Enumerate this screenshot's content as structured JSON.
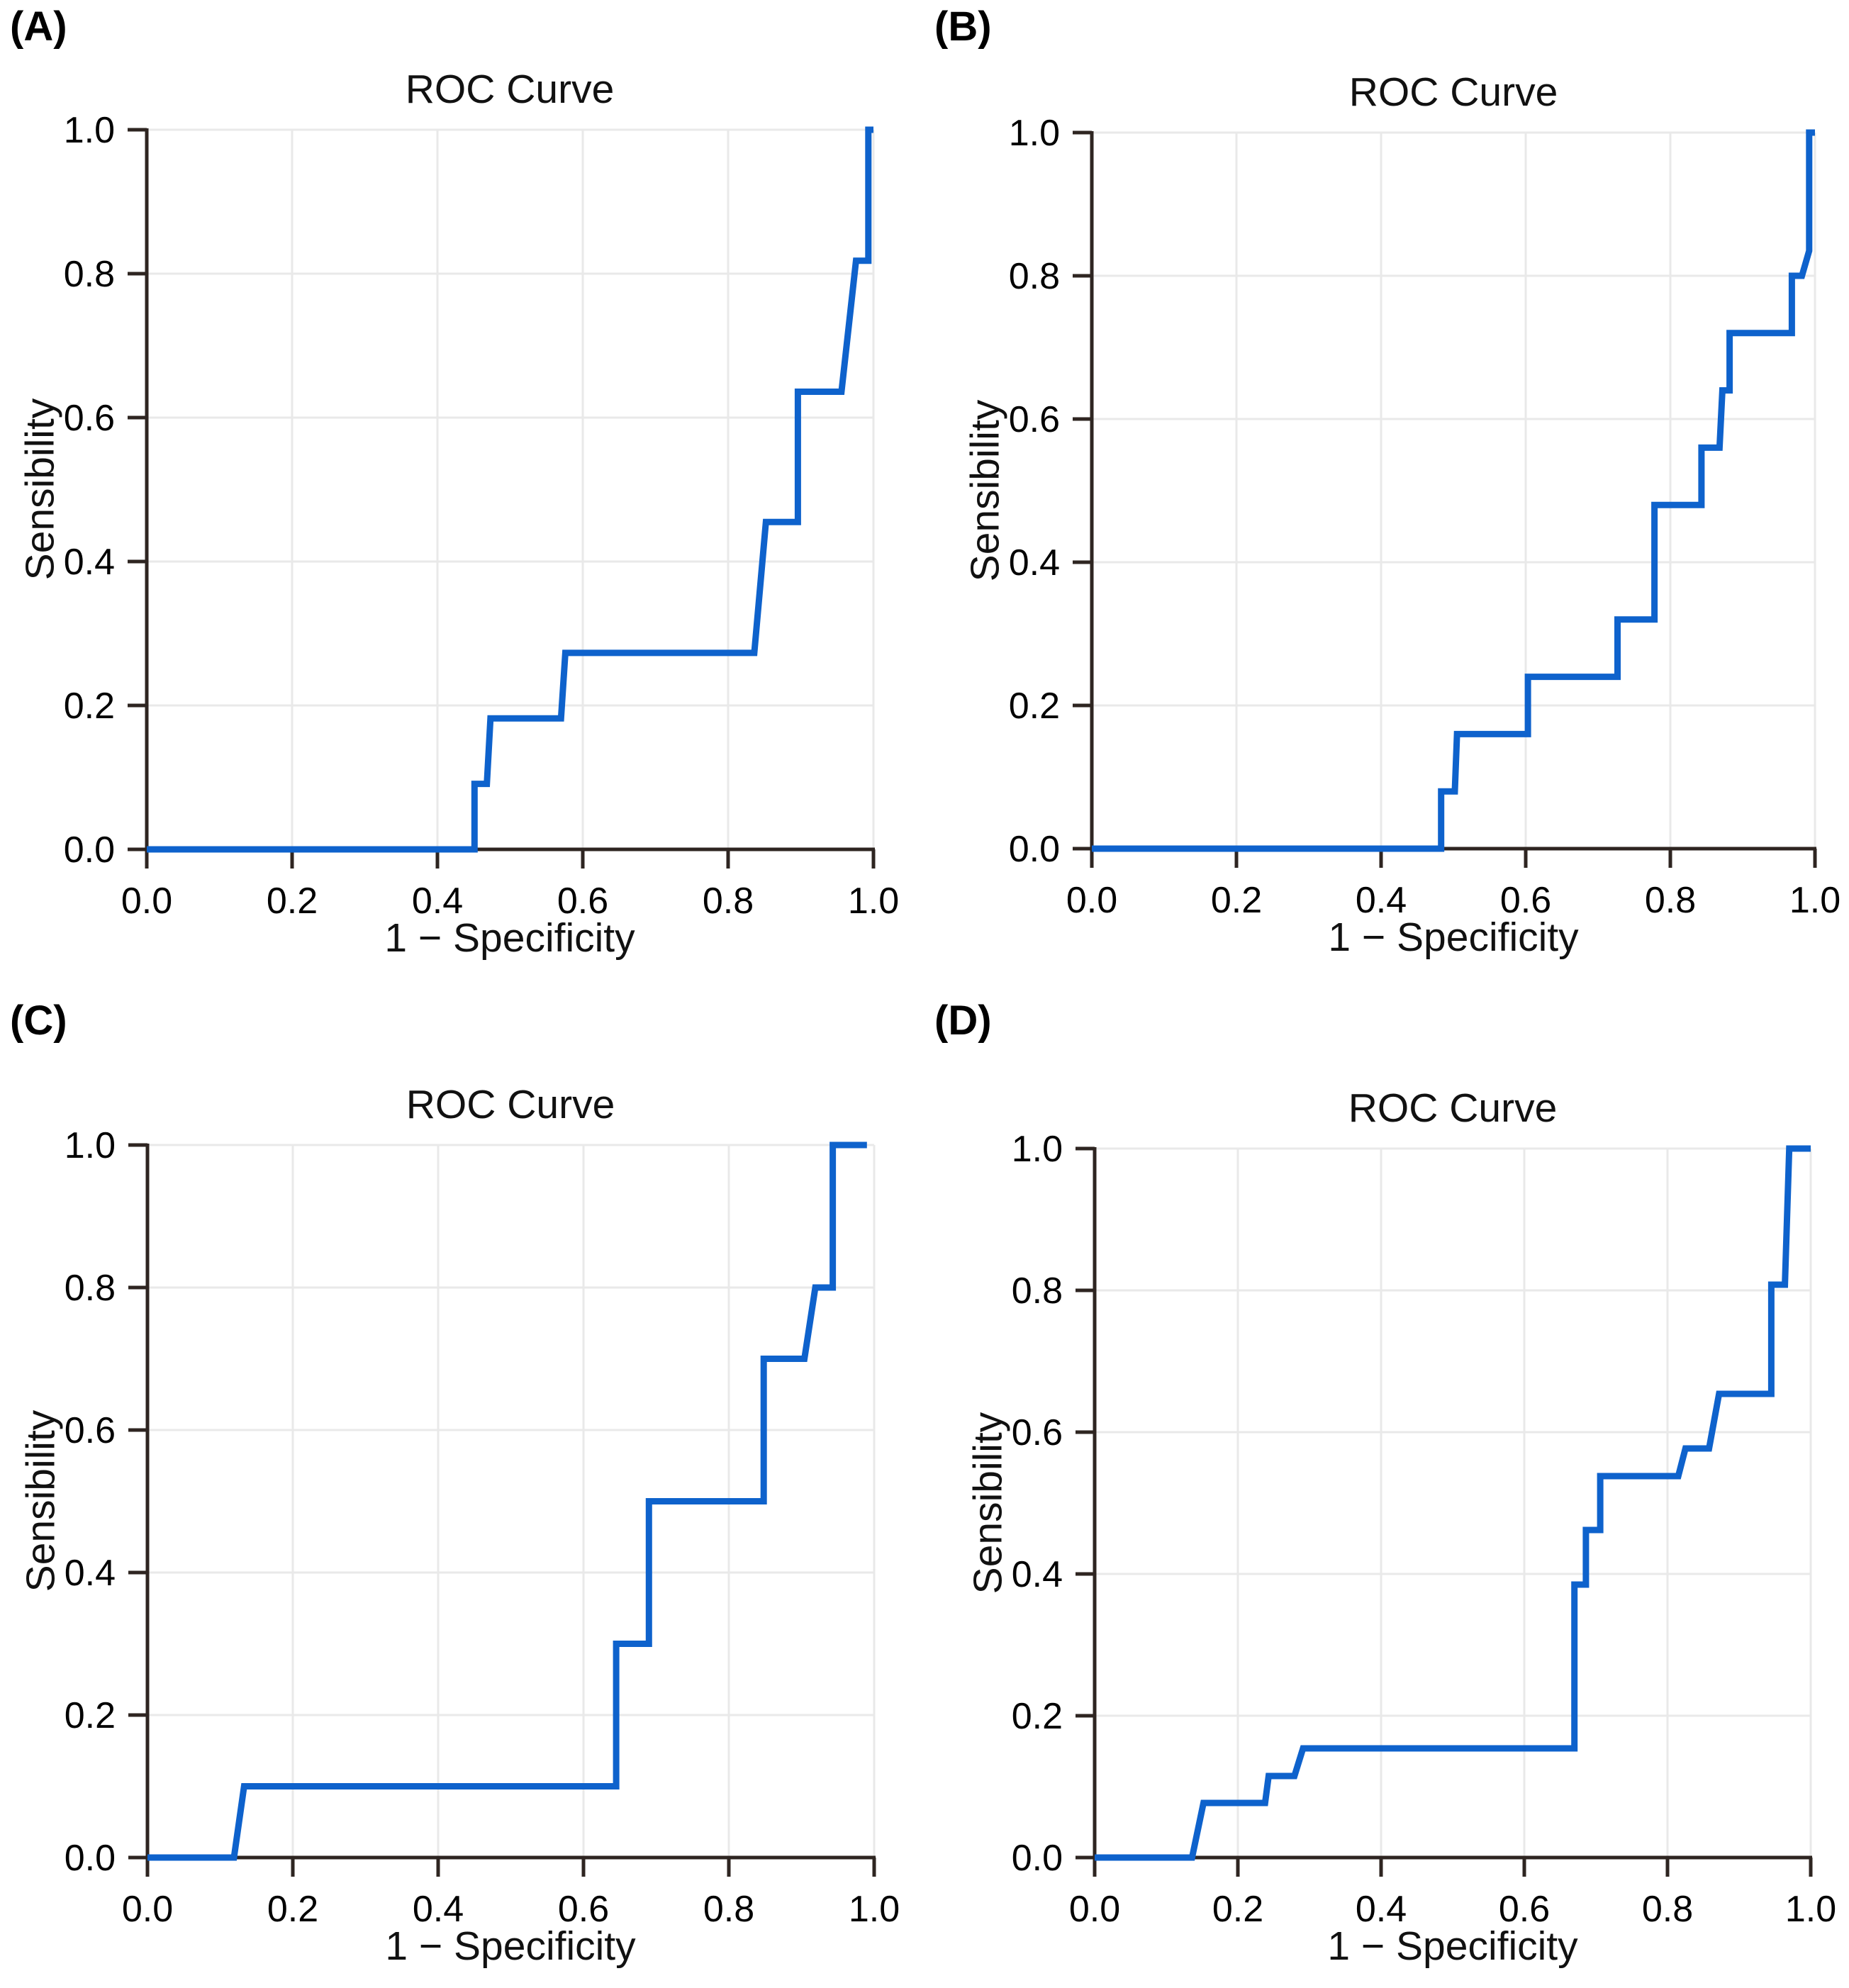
{
  "figure": {
    "background": "#FFFFFF",
    "description_title": "ROC Curve"
  },
  "styles": {
    "curve_color": "#0E62CC",
    "spine_color": "#2E2521",
    "grid_color": "#E9E9E9",
    "text_color": "#000000",
    "background": "#FFFFFF"
  },
  "chart_data": [
    {
      "type": "line",
      "subtype": "roc-step",
      "panel_label": "(A)",
      "title": "ROC Curve",
      "xlabel": "1 − Specificity",
      "ylabel": "Sensibility",
      "xlim": [
        0.0,
        1.0
      ],
      "ylim": [
        0.0,
        1.0
      ],
      "grid": true,
      "x_ticks": [
        0.0,
        0.2,
        0.4,
        0.6,
        0.8,
        1.0
      ],
      "x_tick_labels": [
        "0.0",
        "0.2",
        "0.4",
        "0.6",
        "0.8",
        "1.0"
      ],
      "y_ticks": [
        0.0,
        0.2,
        0.4,
        0.6,
        0.8,
        1.0
      ],
      "y_tick_labels": [
        "0.0",
        "0.2",
        "0.4",
        "0.6",
        "0.8",
        "1.0"
      ],
      "points": [
        [
          0,
          0
        ],
        [
          0.451,
          0
        ],
        [
          0.451,
          0.091
        ],
        [
          0.468,
          0.091
        ],
        [
          0.473,
          0.182
        ],
        [
          0.57,
          0.182
        ],
        [
          0.576,
          0.273
        ],
        [
          0.836,
          0.273
        ],
        [
          0.852,
          0.455
        ],
        [
          0.896,
          0.455
        ],
        [
          0.896,
          0.636
        ],
        [
          0.956,
          0.636
        ],
        [
          0.976,
          0.818
        ],
        [
          0.993,
          0.818
        ],
        [
          0.993,
          1.0
        ],
        [
          1.0,
          1.0
        ]
      ]
    },
    {
      "type": "line",
      "subtype": "roc-step",
      "panel_label": "(B)",
      "title": "ROC Curve",
      "xlabel": "1 − Specificity",
      "ylabel": "Sensibility",
      "xlim": [
        0.0,
        1.0
      ],
      "ylim": [
        0.0,
        1.0
      ],
      "grid": true,
      "x_ticks": [
        0.0,
        0.2,
        0.4,
        0.6,
        0.8,
        1.0
      ],
      "x_tick_labels": [
        "0.0",
        "0.2",
        "0.4",
        "0.6",
        "0.8",
        "1.0"
      ],
      "y_ticks": [
        0.0,
        0.2,
        0.4,
        0.6,
        0.8,
        1.0
      ],
      "y_tick_labels": [
        "0.0",
        "0.2",
        "0.4",
        "0.6",
        "0.8",
        "1.0"
      ],
      "points": [
        [
          0,
          0
        ],
        [
          0.483,
          0
        ],
        [
          0.483,
          0.08
        ],
        [
          0.502,
          0.08
        ],
        [
          0.505,
          0.16
        ],
        [
          0.603,
          0.16
        ],
        [
          0.603,
          0.24
        ],
        [
          0.727,
          0.24
        ],
        [
          0.727,
          0.32
        ],
        [
          0.778,
          0.32
        ],
        [
          0.778,
          0.48
        ],
        [
          0.843,
          0.48
        ],
        [
          0.843,
          0.56
        ],
        [
          0.868,
          0.56
        ],
        [
          0.872,
          0.64
        ],
        [
          0.882,
          0.64
        ],
        [
          0.882,
          0.72
        ],
        [
          0.968,
          0.72
        ],
        [
          0.968,
          0.8
        ],
        [
          0.982,
          0.8
        ],
        [
          0.992,
          0.835
        ],
        [
          0.992,
          1.0
        ],
        [
          1.0,
          1.0
        ]
      ]
    },
    {
      "type": "line",
      "subtype": "roc-step",
      "panel_label": "(C)",
      "title": "ROC Curve",
      "xlabel": "1 − Specificity",
      "ylabel": "Sensibility",
      "xlim": [
        0.0,
        1.0
      ],
      "ylim": [
        0.0,
        1.0
      ],
      "grid": true,
      "x_ticks": [
        0.0,
        0.2,
        0.4,
        0.6,
        0.8,
        1.0
      ],
      "x_tick_labels": [
        "0.0",
        "0.2",
        "0.4",
        "0.6",
        "0.8",
        "1.0"
      ],
      "y_ticks": [
        0.0,
        0.2,
        0.4,
        0.6,
        0.8,
        1.0
      ],
      "y_tick_labels": [
        "0.0",
        "0.2",
        "0.4",
        "0.6",
        "0.8",
        "1.0"
      ],
      "points": [
        [
          0,
          0
        ],
        [
          0.119,
          0
        ],
        [
          0.133,
          0.1
        ],
        [
          0.645,
          0.1
        ],
        [
          0.645,
          0.3
        ],
        [
          0.69,
          0.3
        ],
        [
          0.69,
          0.5
        ],
        [
          0.848,
          0.5
        ],
        [
          0.848,
          0.7
        ],
        [
          0.904,
          0.7
        ],
        [
          0.919,
          0.8
        ],
        [
          0.943,
          0.8
        ],
        [
          0.943,
          1.0
        ],
        [
          0.99,
          1.0
        ]
      ]
    },
    {
      "type": "line",
      "subtype": "roc-step",
      "panel_label": "(D)",
      "title": "ROC Curve",
      "xlabel": "1 − Specificity",
      "ylabel": "Sensibility",
      "xlim": [
        0.0,
        1.0
      ],
      "ylim": [
        0.0,
        1.0
      ],
      "grid": true,
      "x_ticks": [
        0.0,
        0.2,
        0.4,
        0.6,
        0.8,
        1.0
      ],
      "x_tick_labels": [
        "0.0",
        "0.2",
        "0.4",
        "0.6",
        "0.8",
        "1.0"
      ],
      "y_ticks": [
        0.0,
        0.2,
        0.4,
        0.6,
        0.8,
        1.0
      ],
      "y_tick_labels": [
        "0.0",
        "0.2",
        "0.4",
        "0.6",
        "0.8",
        "1.0"
      ],
      "points": [
        [
          0,
          0
        ],
        [
          0.136,
          0
        ],
        [
          0.152,
          0.077
        ],
        [
          0.238,
          0.077
        ],
        [
          0.243,
          0.115
        ],
        [
          0.279,
          0.115
        ],
        [
          0.291,
          0.154
        ],
        [
          0.67,
          0.154
        ],
        [
          0.67,
          0.385
        ],
        [
          0.686,
          0.385
        ],
        [
          0.686,
          0.462
        ],
        [
          0.706,
          0.462
        ],
        [
          0.706,
          0.538
        ],
        [
          0.815,
          0.538
        ],
        [
          0.825,
          0.577
        ],
        [
          0.858,
          0.577
        ],
        [
          0.872,
          0.654
        ],
        [
          0.945,
          0.654
        ],
        [
          0.945,
          0.808
        ],
        [
          0.964,
          0.808
        ],
        [
          0.97,
          1.0
        ],
        [
          1.0,
          1.0
        ]
      ]
    }
  ]
}
